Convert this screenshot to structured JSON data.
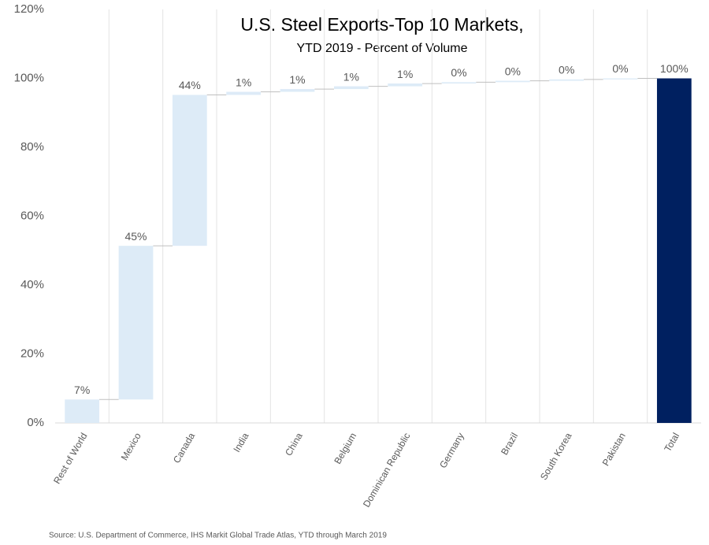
{
  "chart_data": {
    "type": "waterfall",
    "title": "U.S. Steel Exports-Top 10 Markets,",
    "subtitle": "YTD 2019 - Percent of Volume",
    "source": "Source: U.S. Department of Commerce, IHS Markit Global Trade Atlas, YTD through March 2019",
    "categories": [
      "Rest of World",
      "Mexico",
      "Canada",
      "India",
      "China",
      "Belgium",
      "Dominican Republic",
      "Germany",
      "Brazil",
      "South Korea",
      "Pakistan",
      "Total"
    ],
    "values": [
      6.8,
      44.6,
      43.8,
      0.9,
      0.8,
      0.8,
      0.8,
      0.4,
      0.4,
      0.4,
      0.3,
      100
    ],
    "value_labels": [
      "7%",
      "45%",
      "44%",
      "1%",
      "1%",
      "1%",
      "1%",
      "0%",
      "0%",
      "0%",
      "0%",
      "100%"
    ],
    "is_total": [
      false,
      false,
      false,
      false,
      false,
      false,
      false,
      false,
      false,
      false,
      false,
      true
    ],
    "color": "#ddebf7",
    "total_color": "#002060",
    "ylim": [
      0,
      120
    ],
    "yticks": [
      {
        "value": 0,
        "label": "0%"
      },
      {
        "value": 20,
        "label": "20%"
      },
      {
        "value": 40,
        "label": "40%"
      },
      {
        "value": 60,
        "label": "60%"
      },
      {
        "value": 80,
        "label": "80%"
      },
      {
        "value": 100,
        "label": "100%"
      },
      {
        "value": 120,
        "label": "120%"
      }
    ],
    "grid": true
  }
}
